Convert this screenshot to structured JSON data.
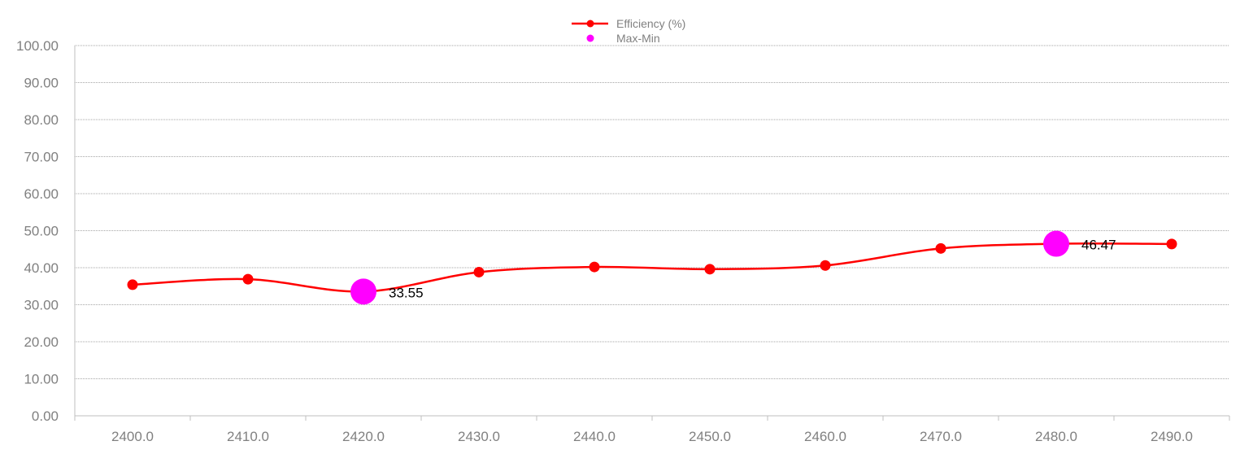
{
  "chart_data": {
    "type": "line",
    "title": "",
    "xlabel": "",
    "ylabel": "",
    "x": [
      2400.0,
      2410.0,
      2420.0,
      2430.0,
      2440.0,
      2450.0,
      2460.0,
      2470.0,
      2480.0,
      2490.0
    ],
    "x_tick_labels": [
      "2400.0",
      "2410.0",
      "2420.0",
      "2430.0",
      "2440.0",
      "2450.0",
      "2460.0",
      "2470.0",
      "2480.0",
      "2490.0"
    ],
    "y_tick_labels": [
      "0.00",
      "10.00",
      "20.00",
      "30.00",
      "40.00",
      "50.00",
      "60.00",
      "70.00",
      "80.00",
      "90.00",
      "100.00"
    ],
    "ylim": [
      0,
      100
    ],
    "grid": true,
    "legend_position": "top-center",
    "series": [
      {
        "name": "Efficiency (%)",
        "color": "#ff0000",
        "values": [
          35.4,
          36.9,
          33.55,
          38.8,
          40.2,
          39.6,
          40.6,
          45.2,
          46.47,
          46.4
        ]
      }
    ],
    "markers": {
      "name": "Max-Min",
      "color": "#ff00ff",
      "points": [
        {
          "x": 2420.0,
          "y": 33.55,
          "label": "33.55"
        },
        {
          "x": 2480.0,
          "y": 46.47,
          "label": "46.47"
        }
      ]
    }
  }
}
